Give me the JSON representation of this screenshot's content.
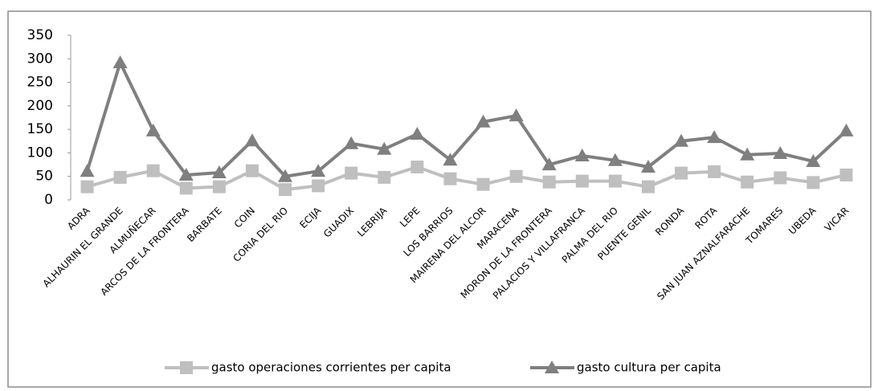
{
  "chart_data": {
    "type": "line",
    "categories": [
      "ADRA",
      "ALHAURIN EL GRANDE",
      "ALMUÑECAR",
      "ARCOS DE LA FRONTERA",
      "BARBATE",
      "COIN",
      "CORIA DEL RIO",
      "ECIJA",
      "GUADIX",
      "LEBRIJA",
      "LEPE",
      "LOS BARRIOS",
      "MAIRENA DEL ALCOR",
      "MARACENA",
      "MORON DE LA FRONTERA",
      "PALACIOS Y VILLAFRANCA",
      "PALMA DEL RIO",
      "PUENTE GENIL",
      "RONDA",
      "ROTA",
      "SAN JUAN AZNALFARACHE",
      "TOMARES",
      "UBEDA",
      "VICAR"
    ],
    "series": [
      {
        "name": "gasto operaciones corrientes per capita",
        "color": "#bfbfbf",
        "marker": "square",
        "values": [
          28,
          48,
          62,
          25,
          28,
          62,
          22,
          30,
          57,
          48,
          70,
          45,
          33,
          50,
          38,
          40,
          40,
          28,
          57,
          60,
          38,
          47,
          37,
          53
        ]
      },
      {
        "name": "gasto cultura per capita",
        "color": "#7f7f7f",
        "marker": "triangle",
        "values": [
          61,
          292,
          147,
          53,
          58,
          126,
          50,
          61,
          120,
          108,
          140,
          85,
          166,
          179,
          75,
          94,
          84,
          70,
          125,
          133,
          96,
          99,
          82,
          147
        ]
      }
    ],
    "ylim": [
      0,
      350
    ],
    "yticks": [
      0,
      50,
      100,
      150,
      200,
      250,
      300,
      350
    ],
    "grid": false,
    "legend": "bottom"
  }
}
